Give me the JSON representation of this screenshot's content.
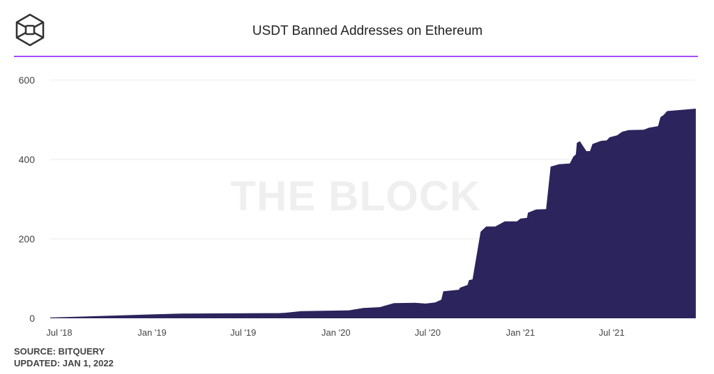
{
  "header": {
    "title": "USDT Banned Addresses on Ethereum",
    "logo_icon": "the-block-cube-logo"
  },
  "watermark": "THE BLOCK",
  "footer": {
    "source": "SOURCE: BITQUERY",
    "updated": "UPDATED: JAN 1, 2022"
  },
  "colors": {
    "area": "#2c245c",
    "accent_rule": "#a64dff",
    "grid": "#ebebeb"
  },
  "chart_data": {
    "type": "area",
    "title": "USDT Banned Addresses on Ethereum",
    "xlabel": "",
    "ylabel": "",
    "ylim": [
      0,
      600
    ],
    "yticks": [
      0,
      200,
      400,
      600
    ],
    "xticks": [
      {
        "date": "2018-07-01",
        "label": "Jul '18"
      },
      {
        "date": "2019-01-01",
        "label": "Jan '19"
      },
      {
        "date": "2019-07-01",
        "label": "Jul '19"
      },
      {
        "date": "2020-01-01",
        "label": "Jan '20"
      },
      {
        "date": "2020-07-01",
        "label": "Jul '20"
      },
      {
        "date": "2021-01-01",
        "label": "Jan '21"
      },
      {
        "date": "2021-07-01",
        "label": "Jul '21"
      }
    ],
    "grid": "horizontal",
    "points": [
      [
        "2018-06-13",
        2
      ],
      [
        "2019-01-08",
        10
      ],
      [
        "2019-02-28",
        12
      ],
      [
        "2019-09-10",
        13
      ],
      [
        "2019-09-24",
        14
      ],
      [
        "2019-10-24",
        18
      ],
      [
        "2020-01-27",
        20
      ],
      [
        "2020-02-24",
        26
      ],
      [
        "2020-03-28",
        28
      ],
      [
        "2020-04-25",
        38
      ],
      [
        "2020-06-06",
        39
      ],
      [
        "2020-06-27",
        37
      ],
      [
        "2020-07-16",
        40
      ],
      [
        "2020-07-28",
        47
      ],
      [
        "2020-08-01",
        68
      ],
      [
        "2020-09-01",
        72
      ],
      [
        "2020-09-03",
        77
      ],
      [
        "2020-09-18",
        84
      ],
      [
        "2020-09-21",
        96
      ],
      [
        "2020-09-28",
        98
      ],
      [
        "2020-10-14",
        218
      ],
      [
        "2020-10-25",
        231
      ],
      [
        "2020-11-12",
        231
      ],
      [
        "2020-12-01",
        244
      ],
      [
        "2020-12-25",
        244
      ],
      [
        "2021-01-01",
        251
      ],
      [
        "2021-01-14",
        253
      ],
      [
        "2021-01-16",
        266
      ],
      [
        "2021-02-01",
        274
      ],
      [
        "2021-02-21",
        275
      ],
      [
        "2021-03-02",
        382
      ],
      [
        "2021-03-19",
        388
      ],
      [
        "2021-04-09",
        390
      ],
      [
        "2021-04-16",
        407
      ],
      [
        "2021-04-21",
        413
      ],
      [
        "2021-04-23",
        442
      ],
      [
        "2021-04-29",
        446
      ],
      [
        "2021-05-12",
        421
      ],
      [
        "2021-05-19",
        421
      ],
      [
        "2021-05-24",
        439
      ],
      [
        "2021-06-10",
        447
      ],
      [
        "2021-06-21",
        448
      ],
      [
        "2021-06-27",
        456
      ],
      [
        "2021-07-12",
        461
      ],
      [
        "2021-07-22",
        470
      ],
      [
        "2021-08-04",
        474
      ],
      [
        "2021-09-03",
        475
      ],
      [
        "2021-09-13",
        480
      ],
      [
        "2021-10-01",
        484
      ],
      [
        "2021-10-06",
        507
      ],
      [
        "2021-10-12",
        512
      ],
      [
        "2021-10-19",
        522
      ],
      [
        "2021-12-15",
        528
      ]
    ]
  }
}
